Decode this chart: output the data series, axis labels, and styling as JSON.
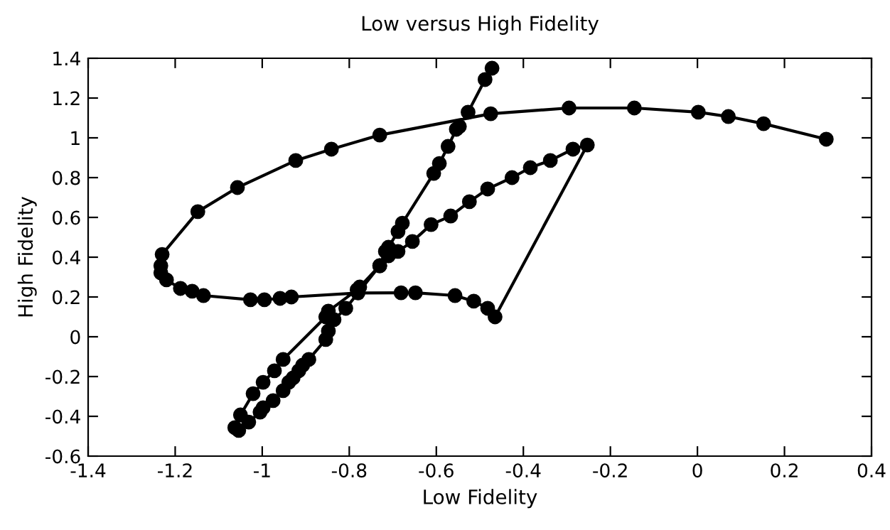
{
  "chart_data": {
    "type": "line",
    "title": "Low versus High Fidelity",
    "xlabel": "Low Fidelity",
    "ylabel": "High Fidelity",
    "series": [
      {
        "color": "#000000",
        "x": [
          -0.472,
          -0.488,
          -0.527,
          -0.547,
          -0.554,
          -0.573,
          -0.593,
          -0.606,
          -0.678,
          -0.688,
          -0.71,
          -0.717,
          -0.73,
          -0.776,
          -0.782,
          -0.848,
          -0.854,
          -0.952,
          -0.972,
          -0.998,
          -1.021,
          -1.05,
          -1.063,
          -1.054,
          -1.031,
          -1.005,
          -0.998,
          -0.975,
          -0.952,
          -0.939,
          -0.929,
          -0.916,
          -0.907,
          -0.893,
          -0.854,
          -0.848,
          -0.835,
          -0.808,
          -0.73,
          -0.71,
          -0.688,
          -0.655,
          -0.612,
          -0.567,
          -0.524,
          -0.482,
          -0.426,
          -0.384,
          -0.338,
          -0.286,
          -0.253,
          -0.465,
          -0.482,
          -0.514,
          -0.557,
          -0.648,
          -0.681,
          -0.78,
          -0.933,
          -0.959,
          -0.995,
          -1.027,
          -1.135,
          -1.161,
          -1.188,
          -1.22,
          -1.233,
          -1.233,
          -1.23,
          -1.148,
          -1.057,
          -0.923,
          -0.841,
          -0.73,
          -0.475,
          -0.295,
          -0.145,
          0.002,
          0.071,
          0.152,
          0.296
        ],
        "values": [
          1.35,
          1.293,
          1.129,
          1.057,
          1.043,
          0.957,
          0.871,
          0.821,
          0.571,
          0.529,
          0.45,
          0.429,
          0.357,
          0.25,
          0.236,
          0.129,
          0.1,
          -0.114,
          -0.171,
          -0.229,
          -0.286,
          -0.393,
          -0.457,
          -0.471,
          -0.429,
          -0.379,
          -0.357,
          -0.321,
          -0.271,
          -0.229,
          -0.207,
          -0.171,
          -0.143,
          -0.114,
          -0.014,
          0.029,
          0.086,
          0.143,
          0.357,
          0.407,
          0.429,
          0.479,
          0.564,
          0.607,
          0.679,
          0.743,
          0.8,
          0.85,
          0.886,
          0.943,
          0.964,
          0.1,
          0.143,
          0.179,
          0.207,
          0.221,
          0.221,
          0.22,
          0.2,
          0.193,
          0.186,
          0.186,
          0.207,
          0.229,
          0.243,
          0.286,
          0.321,
          0.357,
          0.414,
          0.629,
          0.75,
          0.886,
          0.943,
          1.014,
          1.121,
          1.15,
          1.15,
          1.129,
          1.107,
          1.071,
          0.993
        ]
      }
    ],
    "xlim": [
      -1.4,
      0.4
    ],
    "ylim": [
      -0.6,
      1.4
    ],
    "xticks": [
      -1.4,
      -1.2,
      -1,
      -0.8,
      -0.6,
      -0.4,
      -0.2,
      0,
      0.2,
      0.4
    ],
    "yticks": [
      -0.6,
      -0.4,
      -0.2,
      0,
      0.2,
      0.4,
      0.6,
      0.8,
      1,
      1.2,
      1.4
    ],
    "marker": "circle",
    "line_style": "solid",
    "grid": false,
    "legend": false
  }
}
